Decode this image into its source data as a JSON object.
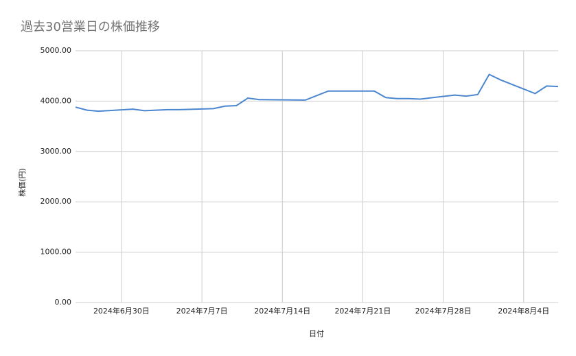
{
  "chart_data": {
    "type": "line",
    "title": "過去30営業日の株価推移",
    "x_label": "日付",
    "y_label": "株価(円)",
    "x": [
      "2024-06-26",
      "2024-06-27",
      "2024-06-28",
      "2024-07-01",
      "2024-07-02",
      "2024-07-03",
      "2024-07-04",
      "2024-07-05",
      "2024-07-08",
      "2024-07-09",
      "2024-07-10",
      "2024-07-11",
      "2024-07-12",
      "2024-07-16",
      "2024-07-17",
      "2024-07-18",
      "2024-07-19",
      "2024-07-22",
      "2024-07-23",
      "2024-07-24",
      "2024-07-25",
      "2024-07-26",
      "2024-07-29",
      "2024-07-30",
      "2024-07-31",
      "2024-08-01",
      "2024-08-02",
      "2024-08-05",
      "2024-08-06",
      "2024-08-07"
    ],
    "series": [
      {
        "name": "株価",
        "color": "#4a86d0",
        "values": [
          3880,
          3820,
          3800,
          3840,
          3810,
          3820,
          3830,
          3830,
          3850,
          3900,
          3910,
          4060,
          4030,
          4020,
          4110,
          4200,
          4200,
          4200,
          4070,
          4050,
          4050,
          4040,
          4120,
          4100,
          4130,
          4530,
          4420,
          4150,
          4300,
          4290
        ]
      }
    ],
    "xlim": [
      "2024-06-26",
      "2024-08-07"
    ],
    "xticks": [
      {
        "value": "2024-06-30",
        "label": "2024年6月30日"
      },
      {
        "value": "2024-07-07",
        "label": "2024年7月7日"
      },
      {
        "value": "2024-07-14",
        "label": "2024年7月14日"
      },
      {
        "value": "2024-07-21",
        "label": "2024年7月21日"
      },
      {
        "value": "2024-07-28",
        "label": "2024年7月28日"
      },
      {
        "value": "2024-08-04",
        "label": "2024年8月4日"
      }
    ],
    "ylim": [
      0,
      5000
    ],
    "yticks": [
      {
        "value": 0,
        "label": "0.00"
      },
      {
        "value": 1000,
        "label": "1000.00"
      },
      {
        "value": 2000,
        "label": "2000.00"
      },
      {
        "value": 3000,
        "label": "3000.00"
      },
      {
        "value": 4000,
        "label": "4000.00"
      },
      {
        "value": 5000,
        "label": "5000.00"
      }
    ],
    "grid": true
  }
}
